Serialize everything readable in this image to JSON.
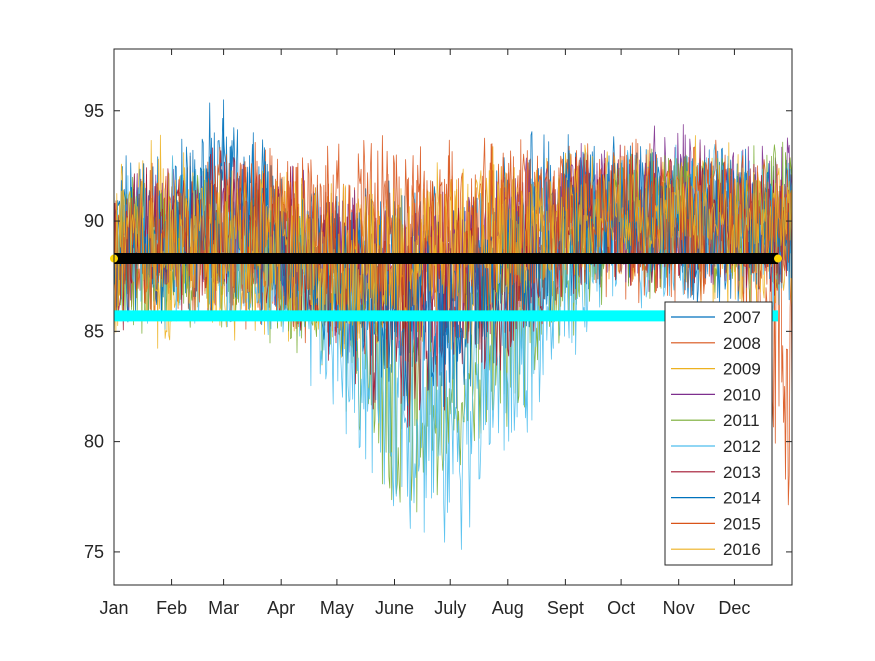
{
  "chart_data": {
    "type": "line",
    "title": "",
    "xlabel": "",
    "ylabel": "",
    "xlim": [
      0,
      365
    ],
    "ylim": [
      73.5,
      97.8
    ],
    "x_ticks": [
      {
        "label": "Jan",
        "day": 0
      },
      {
        "label": "Feb",
        "day": 31
      },
      {
        "label": "Mar",
        "day": 59
      },
      {
        "label": "Apr",
        "day": 90
      },
      {
        "label": "May",
        "day": 120
      },
      {
        "label": "June",
        "day": 151
      },
      {
        "label": "July",
        "day": 181
      },
      {
        "label": "Aug",
        "day": 212
      },
      {
        "label": "Sept",
        "day": 243
      },
      {
        "label": "Oct",
        "day": 273
      },
      {
        "label": "Nov",
        "day": 304
      },
      {
        "label": "Dec",
        "day": 334
      }
    ],
    "y_ticks": [
      75,
      80,
      85,
      90,
      95
    ],
    "grid": false,
    "legend_position": "bottom-right",
    "series": [
      {
        "name": "2007",
        "color": "#0072BD",
        "envelope": [
          [
            0,
            84,
            94
          ],
          [
            31,
            85,
            94
          ],
          [
            59,
            86,
            97
          ],
          [
            90,
            85,
            93
          ],
          [
            120,
            84,
            92
          ],
          [
            151,
            82,
            92
          ],
          [
            181,
            83,
            93
          ],
          [
            212,
            84,
            94
          ],
          [
            243,
            86,
            95
          ],
          [
            273,
            87,
            94
          ],
          [
            304,
            86,
            94
          ],
          [
            334,
            85,
            94
          ],
          [
            365,
            86,
            93
          ]
        ]
      },
      {
        "name": "2008",
        "color": "#D95319",
        "envelope": [
          [
            0,
            84,
            93
          ],
          [
            31,
            85,
            93
          ],
          [
            59,
            85,
            94
          ],
          [
            90,
            84,
            94
          ],
          [
            120,
            84,
            93
          ],
          [
            151,
            84,
            94
          ],
          [
            181,
            84,
            94
          ],
          [
            212,
            85,
            94
          ],
          [
            243,
            86,
            94
          ],
          [
            273,
            86,
            94
          ],
          [
            304,
            86,
            94
          ],
          [
            334,
            86,
            94
          ],
          [
            365,
            73.5,
            93
          ]
        ]
      },
      {
        "name": "2009",
        "color": "#EDB120",
        "envelope": [
          [
            0,
            83,
            94
          ],
          [
            31,
            84,
            95
          ],
          [
            59,
            84,
            93
          ],
          [
            90,
            84,
            93
          ],
          [
            120,
            83,
            92
          ],
          [
            151,
            82,
            92
          ],
          [
            181,
            83,
            93
          ],
          [
            212,
            84,
            94
          ],
          [
            243,
            86,
            94
          ],
          [
            273,
            87,
            94
          ],
          [
            304,
            86,
            94
          ],
          [
            334,
            85,
            94
          ],
          [
            365,
            85,
            94
          ]
        ]
      },
      {
        "name": "2010",
        "color": "#7E2F8E",
        "envelope": [
          [
            0,
            85,
            93
          ],
          [
            31,
            86,
            93
          ],
          [
            59,
            86,
            93
          ],
          [
            90,
            85,
            93
          ],
          [
            120,
            84,
            92
          ],
          [
            151,
            83,
            92
          ],
          [
            181,
            84,
            92
          ],
          [
            212,
            85,
            93
          ],
          [
            243,
            87,
            94
          ],
          [
            273,
            87,
            94
          ],
          [
            304,
            86,
            95.7
          ],
          [
            334,
            86,
            94
          ],
          [
            365,
            86,
            94
          ]
        ]
      },
      {
        "name": "2011",
        "color": "#77AC30",
        "envelope": [
          [
            0,
            84,
            93
          ],
          [
            31,
            85,
            93
          ],
          [
            59,
            85,
            93
          ],
          [
            90,
            84,
            92
          ],
          [
            120,
            82,
            91
          ],
          [
            151,
            75,
            89
          ],
          [
            181,
            77,
            88
          ],
          [
            212,
            80,
            90
          ],
          [
            243,
            84,
            92
          ],
          [
            273,
            86,
            94
          ],
          [
            304,
            86,
            94
          ],
          [
            334,
            86,
            94
          ],
          [
            365,
            86,
            95
          ]
        ]
      },
      {
        "name": "2012",
        "color": "#4DBEEE",
        "envelope": [
          [
            0,
            84,
            93
          ],
          [
            31,
            85,
            93
          ],
          [
            59,
            85,
            93
          ],
          [
            90,
            83,
            92
          ],
          [
            120,
            80,
            90
          ],
          [
            151,
            76,
            88
          ],
          [
            181,
            74,
            87
          ],
          [
            212,
            78,
            89
          ],
          [
            243,
            83,
            92
          ],
          [
            273,
            86,
            94
          ],
          [
            304,
            86,
            94
          ],
          [
            334,
            86,
            94
          ],
          [
            365,
            85,
            93
          ]
        ]
      },
      {
        "name": "2013",
        "color": "#A2142F",
        "envelope": [
          [
            0,
            85,
            93
          ],
          [
            31,
            85,
            93
          ],
          [
            59,
            86,
            94
          ],
          [
            90,
            85,
            93
          ],
          [
            120,
            83,
            92
          ],
          [
            151,
            80,
            91
          ],
          [
            181,
            81,
            91
          ],
          [
            212,
            83,
            92
          ],
          [
            243,
            86,
            93
          ],
          [
            273,
            87,
            94
          ],
          [
            304,
            86,
            94
          ],
          [
            334,
            86,
            94
          ],
          [
            365,
            86,
            93
          ]
        ]
      },
      {
        "name": "2014",
        "color": "#0072BD",
        "envelope": [
          [
            0,
            85,
            93
          ],
          [
            31,
            85,
            93
          ],
          [
            59,
            85,
            96
          ],
          [
            90,
            85,
            93
          ],
          [
            120,
            83,
            92
          ],
          [
            151,
            81,
            91
          ],
          [
            181,
            80,
            91
          ],
          [
            212,
            83,
            92
          ],
          [
            243,
            86,
            94
          ],
          [
            273,
            87,
            94
          ],
          [
            304,
            86,
            94
          ],
          [
            334,
            86,
            94
          ],
          [
            365,
            86,
            93
          ]
        ]
      },
      {
        "name": "2015",
        "color": "#D95319",
        "envelope": [
          [
            0,
            84,
            93
          ],
          [
            31,
            85,
            93
          ],
          [
            59,
            85,
            94
          ],
          [
            90,
            85,
            94
          ],
          [
            120,
            85,
            94
          ],
          [
            151,
            85,
            94
          ],
          [
            181,
            85,
            94
          ],
          [
            212,
            86,
            94
          ],
          [
            243,
            86,
            94
          ],
          [
            273,
            86,
            94
          ],
          [
            304,
            86,
            94
          ],
          [
            334,
            86,
            94
          ],
          [
            365,
            86,
            93
          ]
        ]
      },
      {
        "name": "2016",
        "color": "#EDB120",
        "envelope": [
          [
            0,
            84,
            93
          ],
          [
            31,
            85,
            93
          ],
          [
            59,
            85,
            93
          ],
          [
            90,
            85,
            93
          ],
          [
            120,
            84,
            92
          ],
          [
            151,
            84,
            92
          ],
          [
            181,
            85,
            93
          ],
          [
            212,
            86,
            93
          ],
          [
            243,
            87,
            93
          ],
          [
            273,
            88,
            93
          ],
          [
            304,
            88,
            93
          ],
          [
            334,
            87,
            93
          ],
          [
            365,
            87,
            93
          ]
        ]
      }
    ],
    "reference_lines": [
      {
        "y": 88.3,
        "color": "#000000",
        "marker_color": "#FFD700"
      },
      {
        "y": 85.7,
        "color": "#00FFFF"
      }
    ]
  }
}
